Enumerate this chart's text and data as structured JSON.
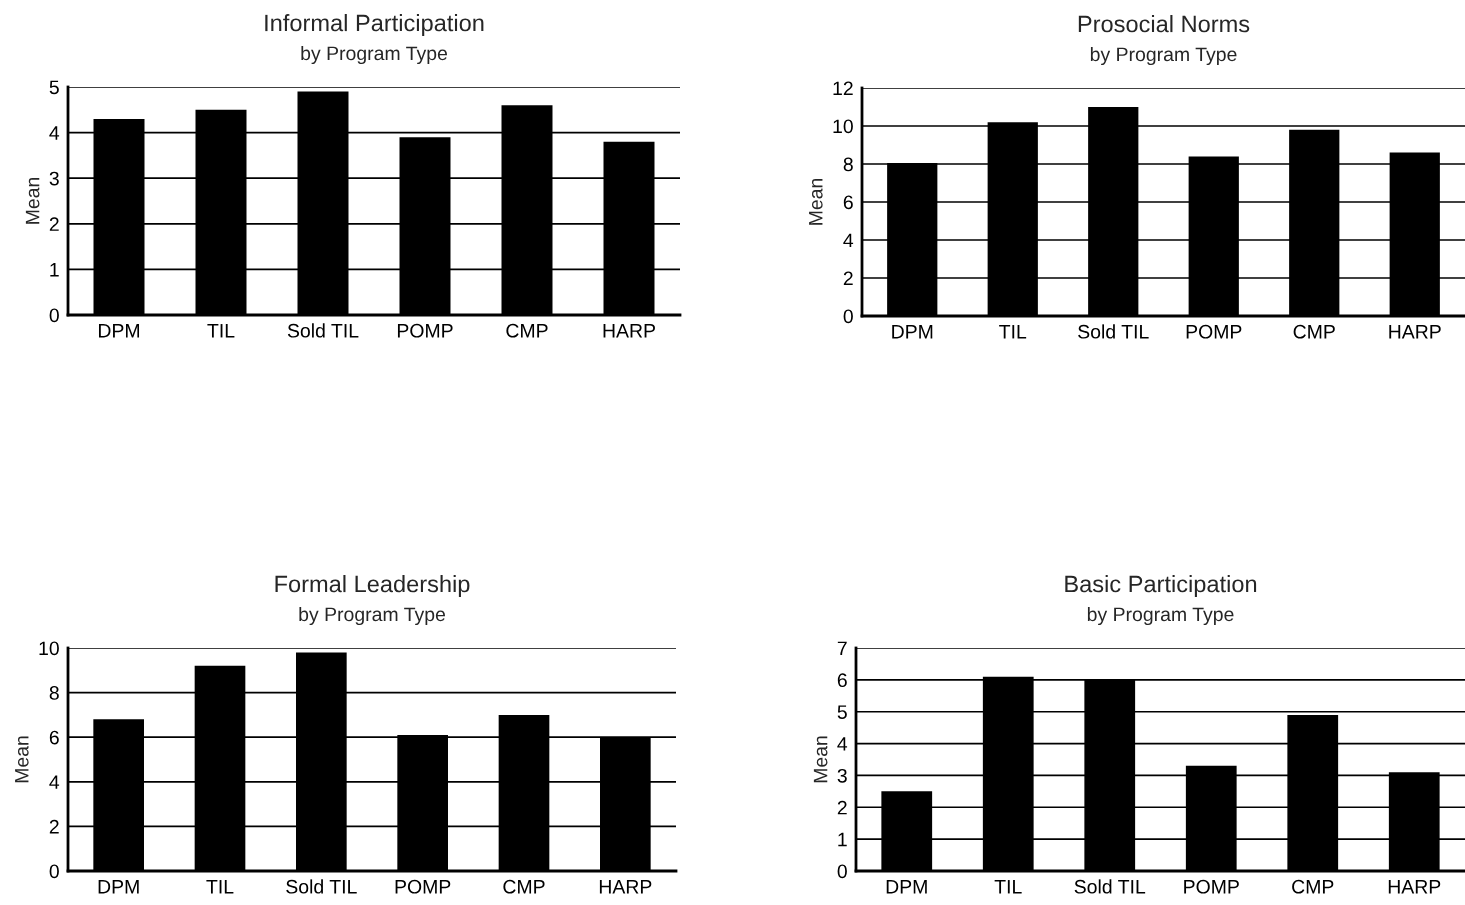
{
  "chart_data": [
    {
      "type": "bar",
      "title": "Informal Participation",
      "subtitle": "by Program Type",
      "ylabel": "Mean",
      "categories": [
        "DPM",
        "TIL",
        "Sold TIL",
        "POMP",
        "CMP",
        "HARP"
      ],
      "values": [
        4.3,
        4.5,
        4.9,
        3.9,
        4.6,
        3.8
      ],
      "color": "#000000",
      "ylim": [
        0,
        5
      ],
      "yticks": [
        0,
        1,
        2,
        3,
        4,
        5
      ],
      "grid": "y"
    },
    {
      "type": "bar",
      "title": "Prosocial Norms",
      "subtitle": "by Program Type",
      "ylabel": "Mean",
      "categories": [
        "DPM",
        "TIL",
        "Sold TIL",
        "POMP",
        "CMP",
        "HARP"
      ],
      "values": [
        8.05,
        10.2,
        11.0,
        8.4,
        9.8,
        8.6
      ],
      "color": "#000000",
      "ylim": [
        0,
        12
      ],
      "yticks": [
        0,
        2,
        4,
        6,
        8,
        10,
        12
      ],
      "grid": "y"
    },
    {
      "type": "bar",
      "title": "Formal Leadership",
      "subtitle": "by Program Type",
      "ylabel": "Mean",
      "categories": [
        "DPM",
        "TIL",
        "Sold TIL",
        "POMP",
        "CMP",
        "HARP"
      ],
      "values": [
        6.8,
        9.2,
        9.8,
        6.1,
        7.0,
        6.0
      ],
      "color": "#000000",
      "ylim": [
        0,
        10
      ],
      "yticks": [
        0,
        2,
        4,
        6,
        8,
        10
      ],
      "grid": "y"
    },
    {
      "type": "bar",
      "title": "Basic Participation",
      "subtitle": "by Program Type",
      "ylabel": "Mean",
      "categories": [
        "DPM",
        "TIL",
        "Sold TIL",
        "POMP",
        "CMP",
        "HARP"
      ],
      "values": [
        2.5,
        6.1,
        6.0,
        3.3,
        4.9,
        3.1
      ],
      "color": "#000000",
      "ylim": [
        0,
        7
      ],
      "yticks": [
        0,
        1,
        2,
        3,
        4,
        5,
        6,
        7
      ],
      "grid": "y"
    }
  ]
}
